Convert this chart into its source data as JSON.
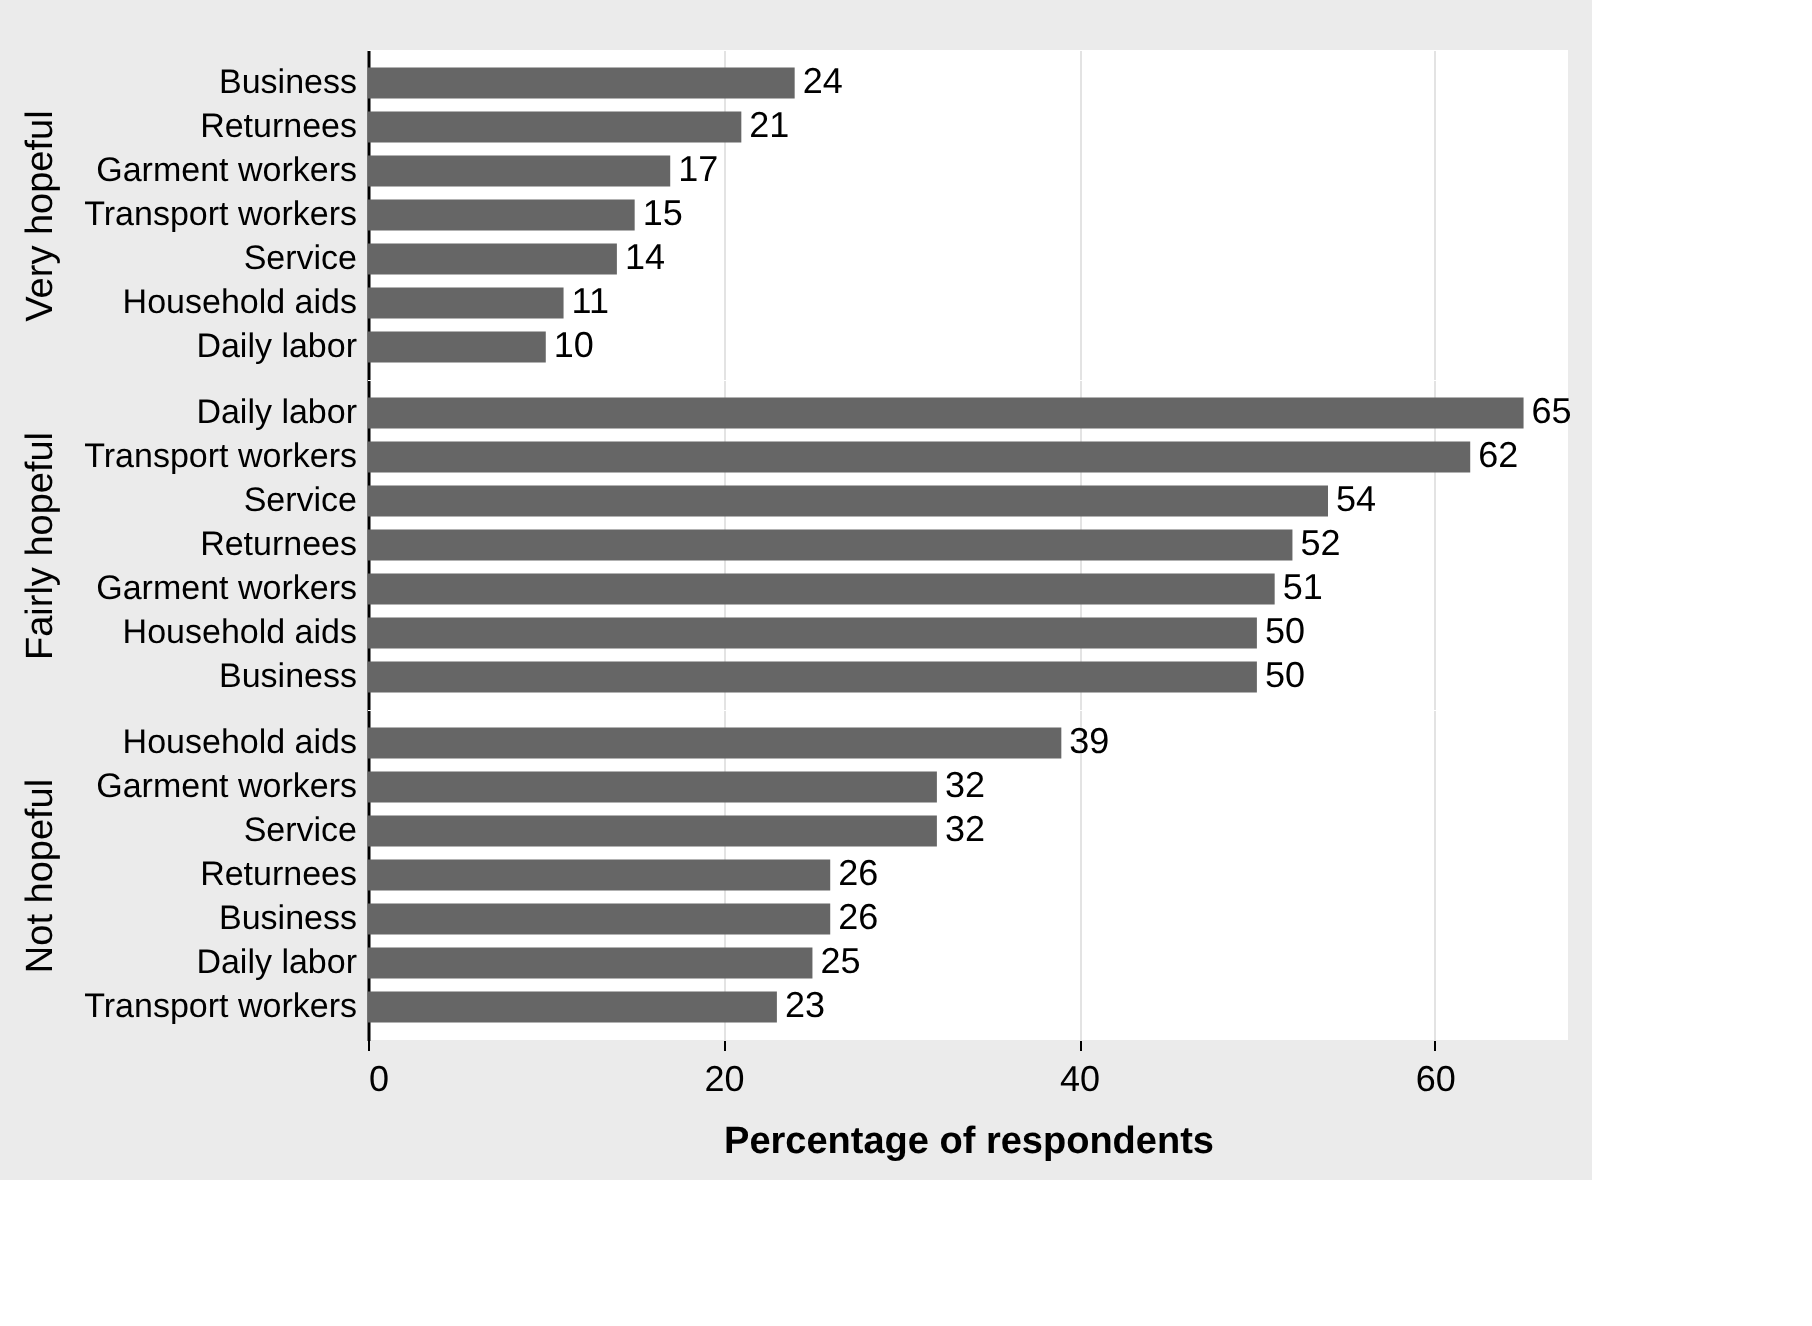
{
  "chart_data": [
    {
      "type": "bar",
      "orientation": "horizontal",
      "ylabel": "Very hopeful",
      "categories": [
        "Business",
        "Returnees",
        "Garment workers",
        "Transport workers",
        "Service",
        "Household aids",
        "Daily labor"
      ],
      "values": [
        24,
        21,
        17,
        15,
        14,
        11,
        10
      ],
      "color": "#666666",
      "data_labels": true,
      "xlim": [
        0,
        67.5
      ],
      "xticks": [
        0,
        20,
        40,
        60
      ],
      "grid": "x",
      "tick_labels": "y"
    },
    {
      "type": "bar",
      "orientation": "horizontal",
      "ylabel": "Fairly hopeful",
      "categories": [
        "Daily labor",
        "Transport workers",
        "Service",
        "Returnees",
        "Garment workers",
        "Household aids",
        "Business"
      ],
      "values": [
        65,
        62,
        54,
        52,
        51,
        50,
        50
      ],
      "color": "#666666",
      "data_labels": true,
      "xlim": [
        0,
        67.5
      ],
      "xticks": [
        0,
        20,
        40,
        60
      ],
      "grid": "x",
      "tick_labels": "y"
    },
    {
      "type": "bar",
      "orientation": "horizontal",
      "ylabel": "Not hopeful",
      "xlabel": "Percentage of respondents",
      "categories": [
        "Household aids",
        "Garment workers",
        "Service",
        "Returnees",
        "Business",
        "Daily labor",
        "Transport workers"
      ],
      "values": [
        39,
        32,
        32,
        26,
        26,
        25,
        23
      ],
      "color": "#666666",
      "data_labels": true,
      "xlim": [
        0,
        67.5
      ],
      "xticks": [
        0,
        20,
        40,
        60
      ],
      "grid": "x"
    }
  ]
}
